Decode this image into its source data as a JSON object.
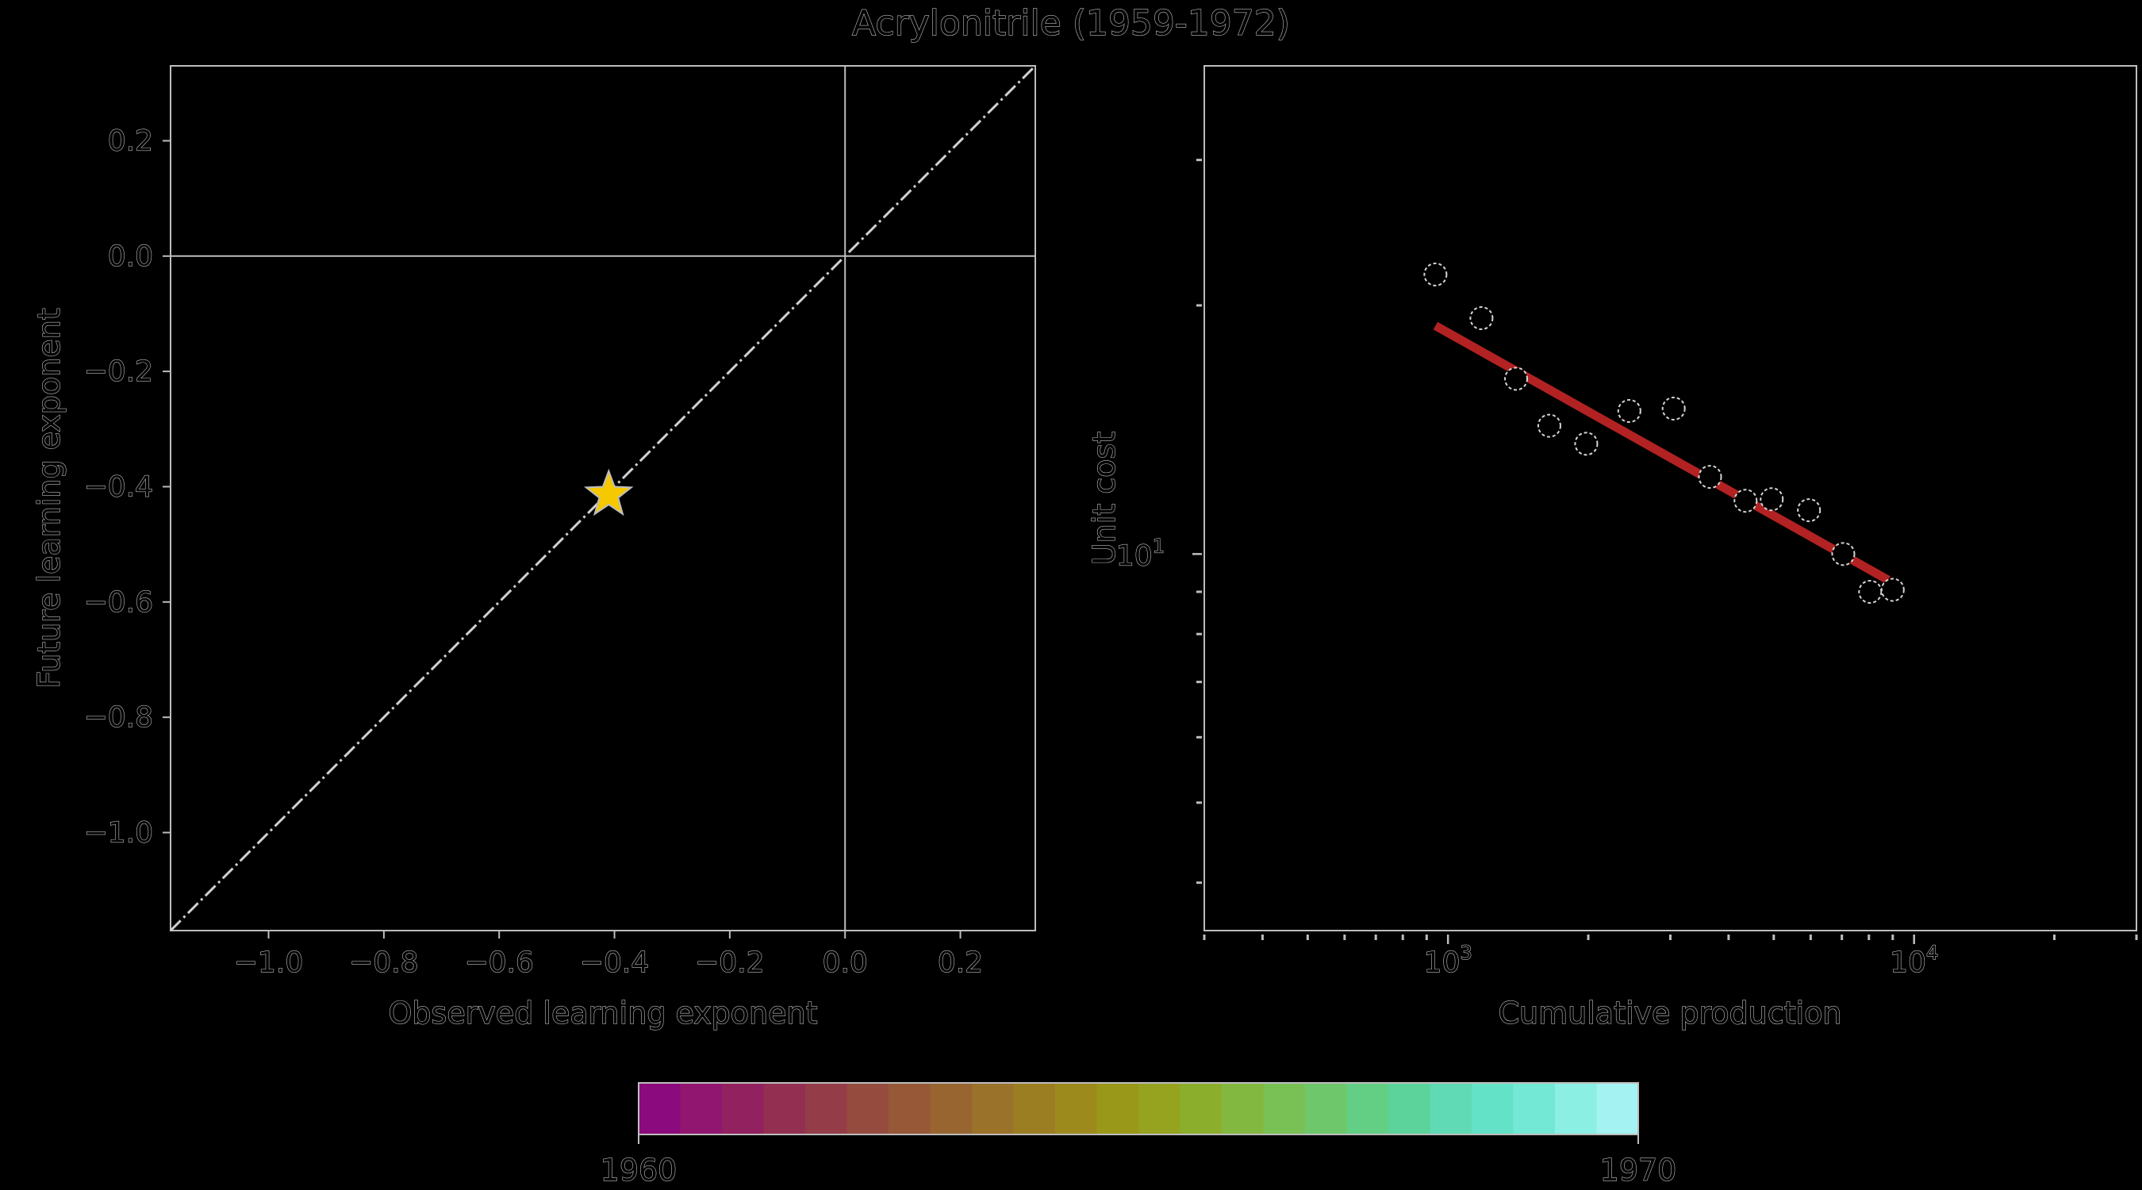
{
  "title": "Acrylonitrile (1959-1972)",
  "chart_data": [
    {
      "type": "scatter",
      "xlabel": "Observed learning exponent",
      "ylabel": "Future learning exponent",
      "xlim": [
        -1.17,
        0.33
      ],
      "ylim": [
        -1.17,
        0.33
      ],
      "xticks": [
        -1.0,
        -0.8,
        -0.6,
        -0.4,
        -0.2,
        0.0,
        0.2
      ],
      "yticks": [
        -1.0,
        -0.8,
        -0.6,
        -0.4,
        -0.2,
        0.0,
        0.2
      ],
      "xtick_labels": [
        "−1.0",
        "−0.8",
        "−0.6",
        "−0.4",
        "−0.2",
        "0.0",
        "0.2"
      ],
      "ytick_labels": [
        "−1.0",
        "−0.8",
        "−0.6",
        "−0.4",
        "−0.2",
        "0.0",
        "0.2"
      ],
      "reference_lines": {
        "diagonal": true,
        "x0": true,
        "y0": true
      },
      "points": [
        {
          "x": -0.41,
          "y": -0.414,
          "marker": "star",
          "color": "#f5c800"
        }
      ]
    },
    {
      "type": "scatter",
      "xlabel": "Cumulative production",
      "ylabel": "Unit cost",
      "xscale": "log",
      "yscale": "log",
      "xlim": [
        300,
        30000
      ],
      "ylim": [
        3.5,
        39
      ],
      "xtick_labels": [
        {
          "value": 1000,
          "base": "10",
          "exp": "3"
        },
        {
          "value": 10000,
          "base": "10",
          "exp": "4"
        }
      ],
      "ytick_labels": [
        {
          "value": 10,
          "base": "10",
          "exp": "1"
        }
      ],
      "points": [
        {
          "x": 940,
          "y": 21.8
        },
        {
          "x": 1180,
          "y": 19.3
        },
        {
          "x": 1400,
          "y": 16.3
        },
        {
          "x": 1650,
          "y": 14.3
        },
        {
          "x": 1980,
          "y": 13.6
        },
        {
          "x": 2450,
          "y": 14.9
        },
        {
          "x": 3050,
          "y": 15.0
        },
        {
          "x": 3650,
          "y": 12.4
        },
        {
          "x": 4350,
          "y": 11.6
        },
        {
          "x": 4950,
          "y": 11.65
        },
        {
          "x": 5950,
          "y": 11.3
        },
        {
          "x": 7050,
          "y": 10.0
        },
        {
          "x": 8050,
          "y": 9.0
        },
        {
          "x": 9000,
          "y": 9.05
        }
      ],
      "fit_line": {
        "x": [
          940,
          8800
        ],
        "y": [
          18.9,
          9.3
        ],
        "color": "#b22222"
      }
    }
  ],
  "colorbar": {
    "label_min": "1960",
    "label_max": "1970",
    "colors": [
      "#8b0a7d",
      "#901670",
      "#92215f",
      "#933052",
      "#943d49",
      "#954c3f",
      "#975837",
      "#986530",
      "#9a7229",
      "#9b7e22",
      "#9d8a1d",
      "#9a9819",
      "#95a31f",
      "#8cae2d",
      "#83b840",
      "#79c155",
      "#6ec86b",
      "#62cf84",
      "#5cd39a",
      "#5fdab4",
      "#64e2c7",
      "#73e8d4",
      "#8cefe3",
      "#a5f2f2"
    ]
  }
}
